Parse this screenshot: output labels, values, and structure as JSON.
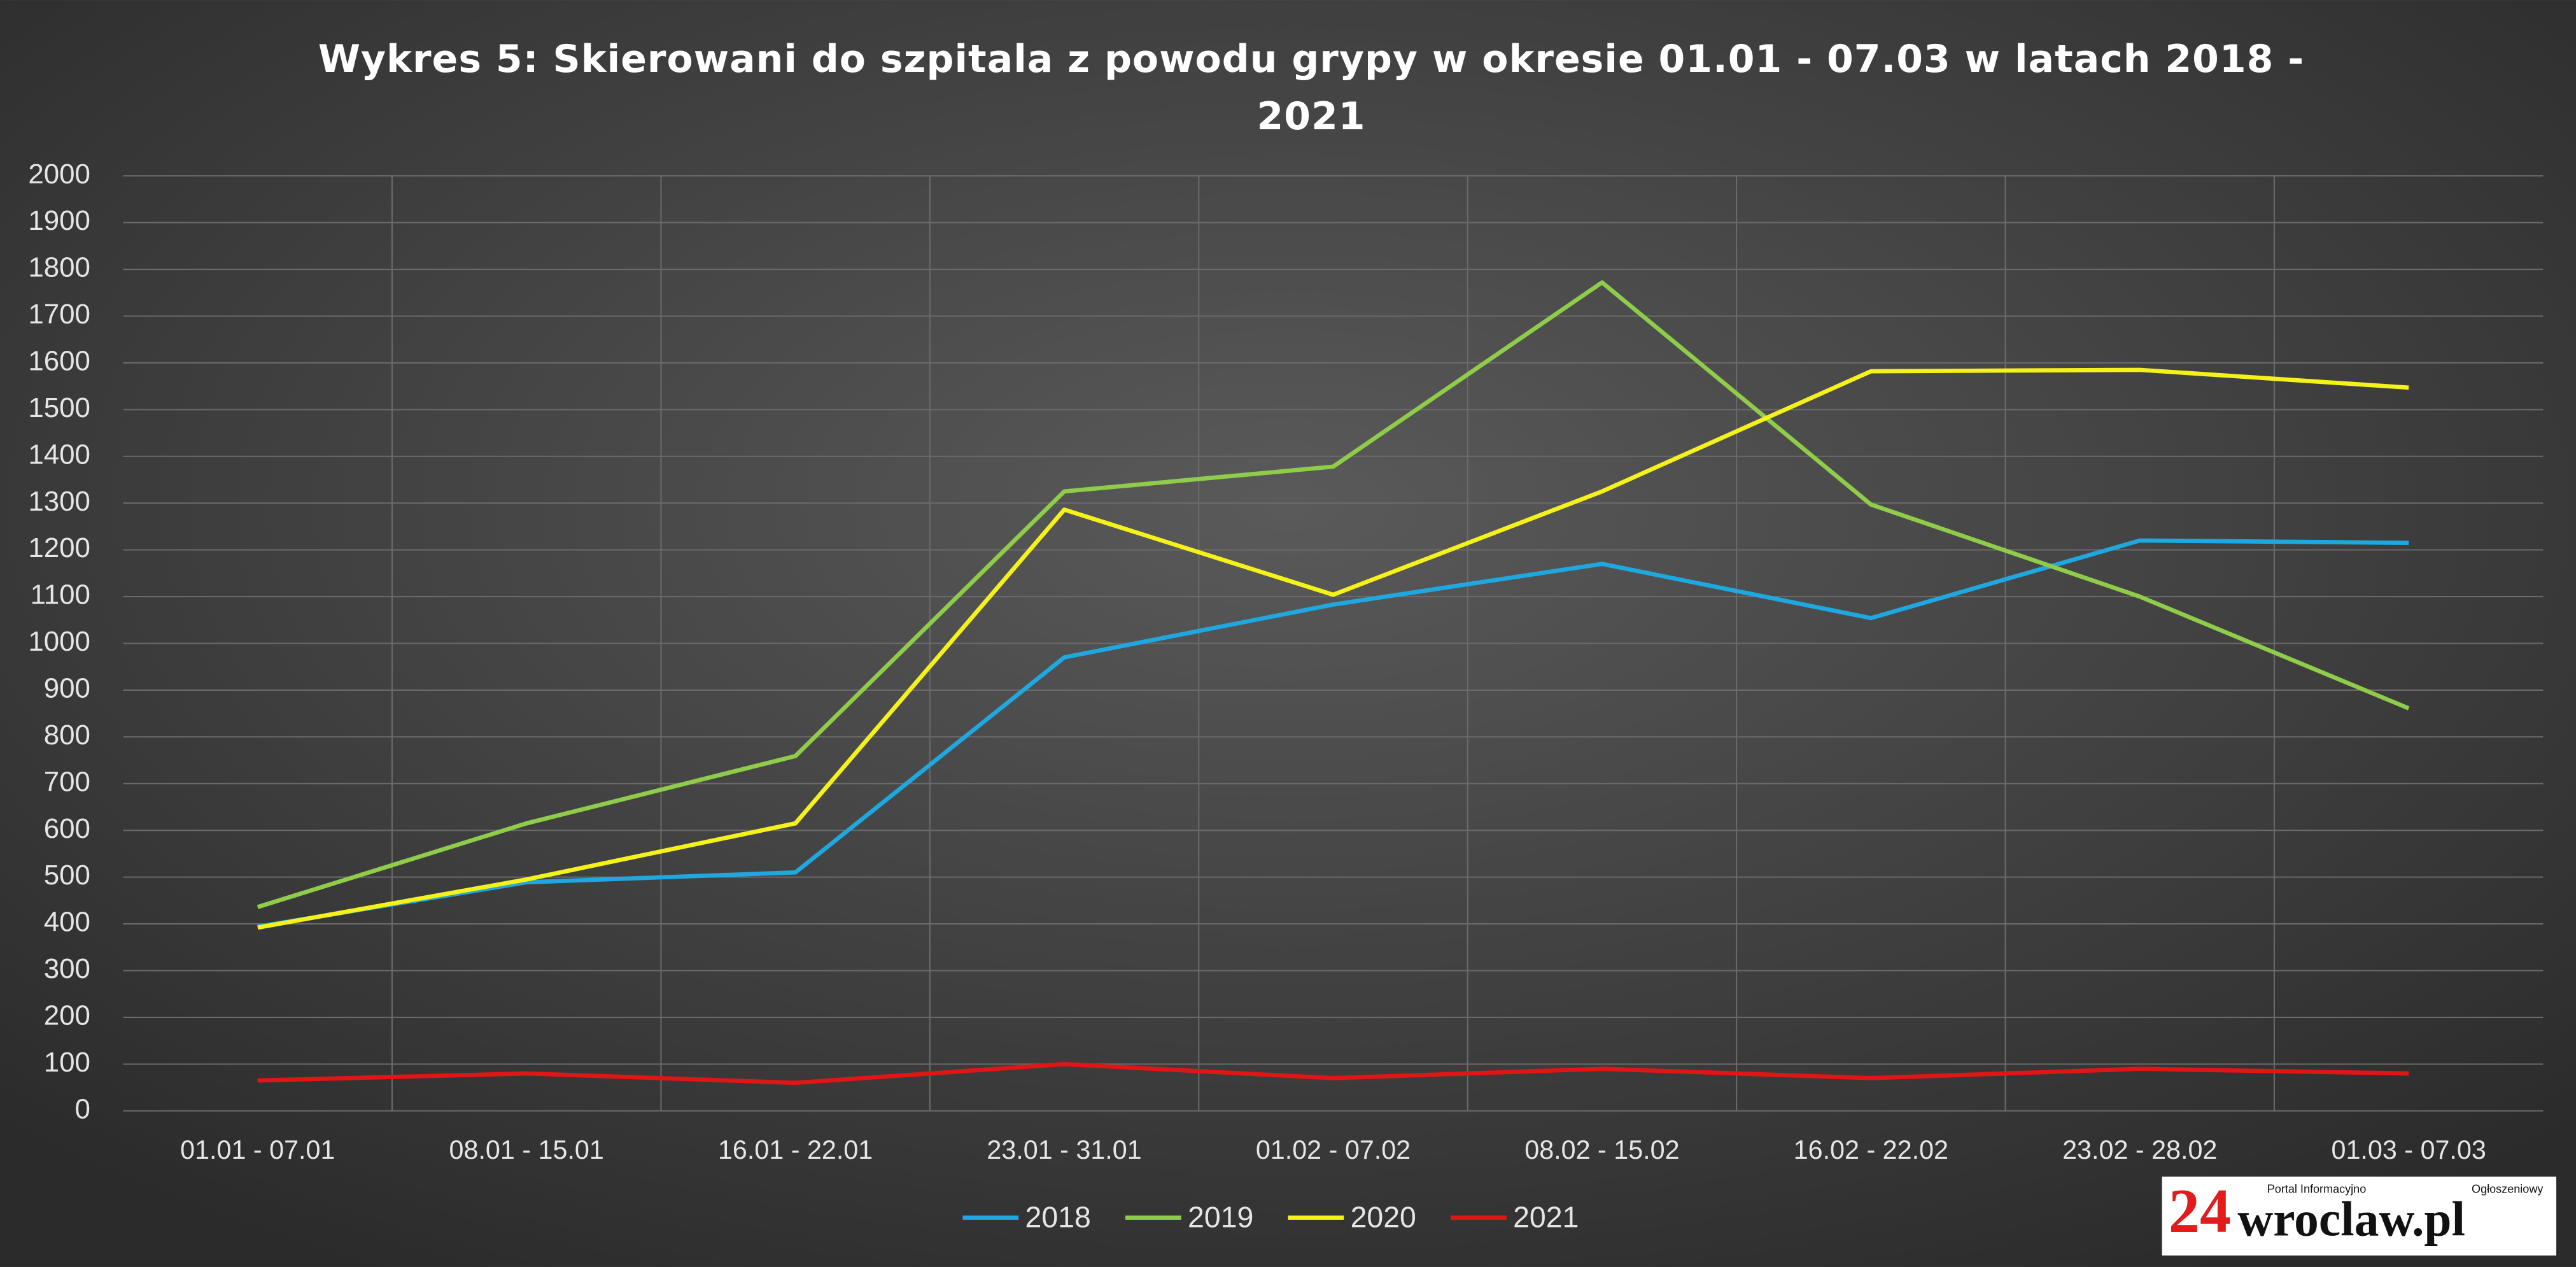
{
  "chart_data": {
    "type": "line",
    "title": "Wykres 5: Skierowani do szpitala z powodu grypy w okresie 01.01 - 07.03 w latach 2018 - 2021",
    "categories": [
      "01.01 - 07.01",
      "08.01 - 15.01",
      "16.01 - 22.01",
      "23.01 - 31.01",
      "01.02 - 07.02",
      "08.02 - 15.02",
      "16.02 - 22.02",
      "23.02 - 28.02",
      "01.03 - 07.03"
    ],
    "series": [
      {
        "name": "2018",
        "color": "#1fa8e0",
        "values": [
          394,
          489,
          510,
          970,
          1083,
          1170,
          1054,
          1220,
          1215
        ]
      },
      {
        "name": "2019",
        "color": "#8fcc4a",
        "values": [
          436,
          615,
          759,
          1325,
          1378,
          1772,
          1297,
          1100,
          861
        ]
      },
      {
        "name": "2020",
        "color": "#f5f21a",
        "values": [
          392,
          495,
          615,
          1286,
          1104,
          1325,
          1582,
          1585,
          1547
        ]
      },
      {
        "name": "2021",
        "color": "#e01616",
        "values": [
          65,
          80,
          60,
          100,
          70,
          90,
          70,
          90,
          80
        ]
      }
    ],
    "ylim": [
      0,
      2000
    ],
    "yticks": [
      0,
      100,
      200,
      300,
      400,
      500,
      600,
      700,
      800,
      900,
      1000,
      1100,
      1200,
      1300,
      1400,
      1500,
      1600,
      1700,
      1800,
      1900,
      2000
    ],
    "grid": true,
    "legend": "bottom"
  },
  "logo": {
    "number": "24",
    "name": "wroclaw.pl",
    "tagline_left": "Portal Informacyjno",
    "tagline_right": "Ogłoszeniowy"
  }
}
